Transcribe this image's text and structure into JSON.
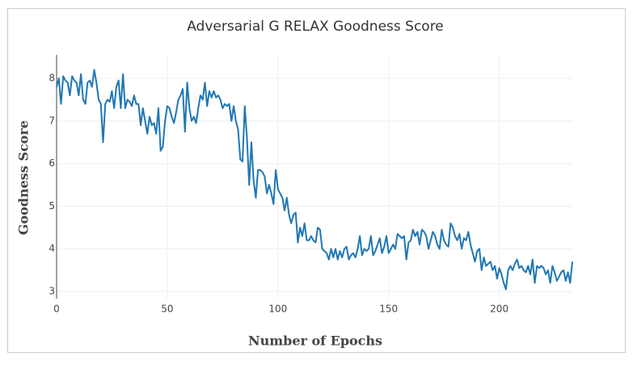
{
  "chart_data": {
    "type": "line",
    "title": "Adversarial G RELAX Goodness Score",
    "x_label": "Number of Epochs",
    "y_label": "Goodness Score",
    "x": [
      0,
      1,
      2,
      3,
      4,
      5,
      6,
      7,
      8,
      9,
      10,
      11,
      12,
      13,
      14,
      15,
      16,
      17,
      18,
      19,
      20,
      21,
      22,
      23,
      24,
      25,
      26,
      27,
      28,
      29,
      30,
      31,
      32,
      33,
      34,
      35,
      36,
      37,
      38,
      39,
      40,
      41,
      42,
      43,
      44,
      45,
      46,
      47,
      48,
      49,
      50,
      51,
      52,
      53,
      54,
      55,
      56,
      57,
      58,
      59,
      60,
      61,
      62,
      63,
      64,
      65,
      66,
      67,
      68,
      69,
      70,
      71,
      72,
      73,
      74,
      75,
      76,
      77,
      78,
      79,
      80,
      81,
      82,
      83,
      84,
      85,
      86,
      87,
      88,
      89,
      90,
      91,
      92,
      93,
      94,
      95,
      96,
      97,
      98,
      99,
      100,
      101,
      102,
      103,
      104,
      105,
      106,
      107,
      108,
      109,
      110,
      111,
      112,
      113,
      114,
      115,
      116,
      117,
      118,
      119,
      120,
      121,
      122,
      123,
      124,
      125,
      126,
      127,
      128,
      129,
      130,
      131,
      132,
      133,
      134,
      135,
      136,
      137,
      138,
      139,
      140,
      141,
      142,
      143,
      144,
      145,
      146,
      147,
      148,
      149,
      150,
      151,
      152,
      153,
      154,
      155,
      156,
      157,
      158,
      159,
      160,
      161,
      162,
      163,
      164,
      165,
      166,
      167,
      168,
      169,
      170,
      171,
      172,
      173,
      174,
      175,
      176,
      177,
      178,
      179,
      180,
      181,
      182,
      183,
      184,
      185,
      186,
      187,
      188,
      189,
      190,
      191,
      192,
      193,
      194,
      195,
      196,
      197,
      198,
      199,
      200,
      201,
      202,
      203,
      204,
      205,
      206,
      207,
      208,
      209,
      210,
      211,
      212,
      213,
      214,
      215,
      216,
      217,
      218,
      219,
      220,
      221,
      222,
      223,
      224,
      225,
      226,
      227,
      228,
      229,
      230,
      231,
      232,
      233
    ],
    "series": [
      {
        "name": "Goodness Score",
        "color": "#1f77b4",
        "values": [
          7.8,
          8.0,
          7.4,
          8.05,
          7.95,
          7.9,
          7.6,
          8.05,
          7.95,
          7.9,
          7.6,
          8.1,
          7.5,
          7.4,
          7.9,
          7.95,
          7.8,
          8.2,
          7.9,
          7.5,
          7.4,
          6.5,
          7.4,
          7.5,
          7.45,
          7.7,
          7.3,
          7.8,
          7.95,
          7.3,
          8.1,
          7.3,
          7.5,
          7.45,
          7.35,
          7.6,
          7.4,
          7.4,
          6.9,
          7.3,
          7.0,
          6.7,
          7.1,
          6.9,
          6.95,
          6.7,
          7.3,
          6.3,
          6.4,
          7.0,
          7.35,
          7.3,
          7.1,
          6.95,
          7.2,
          7.5,
          7.6,
          7.75,
          6.75,
          7.9,
          7.3,
          7.0,
          7.1,
          6.95,
          7.3,
          7.6,
          7.5,
          7.9,
          7.35,
          7.7,
          7.55,
          7.7,
          7.55,
          7.6,
          7.5,
          7.3,
          7.4,
          7.35,
          7.4,
          7.0,
          7.35,
          7.0,
          6.8,
          6.1,
          6.05,
          7.35,
          6.6,
          5.5,
          6.5,
          5.6,
          5.2,
          5.85,
          5.85,
          5.8,
          5.7,
          5.3,
          5.5,
          5.3,
          5.05,
          5.85,
          5.4,
          5.3,
          5.2,
          4.9,
          5.2,
          4.8,
          4.6,
          4.8,
          4.85,
          4.15,
          4.5,
          4.3,
          4.6,
          4.2,
          4.2,
          4.3,
          4.2,
          4.15,
          4.5,
          4.45,
          4.0,
          3.95,
          3.9,
          3.75,
          4.0,
          3.8,
          4.0,
          3.75,
          3.95,
          3.8,
          4.0,
          4.05,
          3.75,
          3.85,
          3.9,
          3.8,
          4.0,
          4.3,
          3.85,
          4.0,
          3.95,
          4.0,
          4.3,
          3.85,
          3.95,
          4.1,
          4.25,
          3.9,
          4.05,
          4.3,
          3.9,
          4.0,
          4.1,
          4.0,
          4.35,
          4.3,
          4.25,
          4.3,
          3.75,
          4.15,
          4.2,
          4.45,
          4.3,
          4.4,
          4.1,
          4.45,
          4.4,
          4.3,
          4.0,
          4.2,
          4.4,
          4.3,
          4.1,
          4.0,
          4.45,
          4.2,
          4.1,
          4.05,
          4.6,
          4.5,
          4.3,
          4.2,
          4.35,
          4.0,
          4.25,
          4.2,
          4.4,
          4.1,
          3.9,
          3.7,
          3.95,
          4.0,
          3.5,
          3.8,
          3.6,
          3.65,
          3.7,
          3.5,
          3.6,
          3.3,
          3.55,
          3.4,
          3.2,
          3.05,
          3.5,
          3.6,
          3.5,
          3.65,
          3.75,
          3.55,
          3.6,
          3.5,
          3.45,
          3.6,
          3.4,
          3.75,
          3.2,
          3.6,
          3.55,
          3.6,
          3.55,
          3.4,
          3.5,
          3.2,
          3.6,
          3.45,
          3.25,
          3.35,
          3.45,
          3.5,
          3.25,
          3.45,
          3.2,
          3.7
        ]
      }
    ],
    "xlim": [
      0,
      233
    ],
    "xticks": [
      0,
      50,
      100,
      150,
      200
    ],
    "ylim": [
      2.83,
      8.55
    ],
    "yticks": [
      3,
      4,
      5,
      6,
      7,
      8
    ],
    "grid": true
  }
}
